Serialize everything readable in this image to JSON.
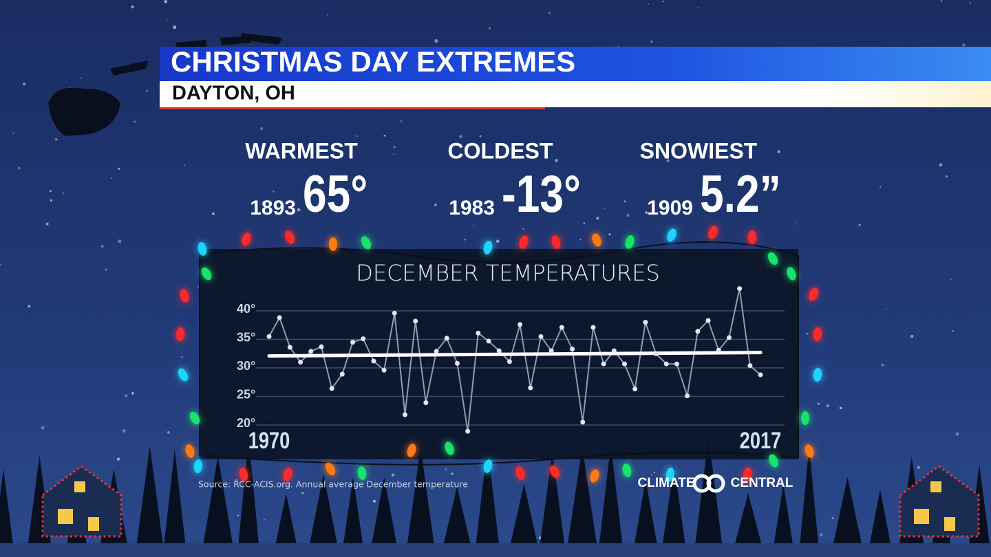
{
  "header": {
    "title": "CHRISTMAS DAY EXTREMES",
    "subtitle": "DAYTON, OH"
  },
  "stats": [
    {
      "label": "WARMEST",
      "year": "1893",
      "value": "65°"
    },
    {
      "label": "COLDEST",
      "year": "1983",
      "value": "-13°"
    },
    {
      "label": "SNOWIEST",
      "year": "1909",
      "value": "5.2”"
    }
  ],
  "chart_data": {
    "type": "line",
    "title": "DECEMBER TEMPERATURES",
    "x": [
      1970,
      1971,
      1972,
      1973,
      1974,
      1975,
      1976,
      1977,
      1978,
      1979,
      1980,
      1981,
      1982,
      1983,
      1984,
      1985,
      1986,
      1987,
      1988,
      1989,
      1990,
      1991,
      1992,
      1993,
      1994,
      1995,
      1996,
      1997,
      1998,
      1999,
      2000,
      2001,
      2002,
      2003,
      2004,
      2005,
      2006,
      2007,
      2008,
      2009,
      2010,
      2011,
      2012,
      2013,
      2014,
      2015,
      2016,
      2017
    ],
    "values": [
      35.5,
      38.8,
      33.6,
      31,
      32.9,
      33.7,
      26.4,
      28.9,
      34.5,
      35.1,
      31.2,
      29.6,
      39.6,
      21.8,
      38.2,
      23.9,
      32.9,
      35.2,
      30.8,
      18.9,
      36.1,
      34.7,
      33,
      31.1,
      37.6,
      26.5,
      35.5,
      33,
      37.1,
      33.3,
      20.5,
      37.1,
      30.7,
      33,
      30.7,
      26.3,
      38,
      32.5,
      30.7,
      30.7,
      25.1,
      36.4,
      38.3,
      33.1,
      35.3,
      43.9,
      30.4,
      28.8
    ],
    "line_color": "#8a9db5",
    "point_color": "#dce8f4",
    "trend": {
      "x": [
        1970,
        2017
      ],
      "values": [
        32.1,
        32.7
      ],
      "color": "#ffffff"
    },
    "xlim": [
      1970,
      2017
    ],
    "xticks": [
      1970,
      2017
    ],
    "ylim": [
      17,
      45
    ],
    "yticks": [
      {
        "value": 20,
        "label": "20°"
      },
      {
        "value": 25,
        "label": "25°"
      },
      {
        "value": 30,
        "label": "30°"
      },
      {
        "value": 35,
        "label": "35°"
      },
      {
        "value": 40,
        "label": "40°"
      }
    ],
    "grid": true
  },
  "source": "Source: RCC-ACIS.org. Annual average December temperature",
  "logo": {
    "left": "CLIMATE",
    "right": "CENTRAL"
  }
}
